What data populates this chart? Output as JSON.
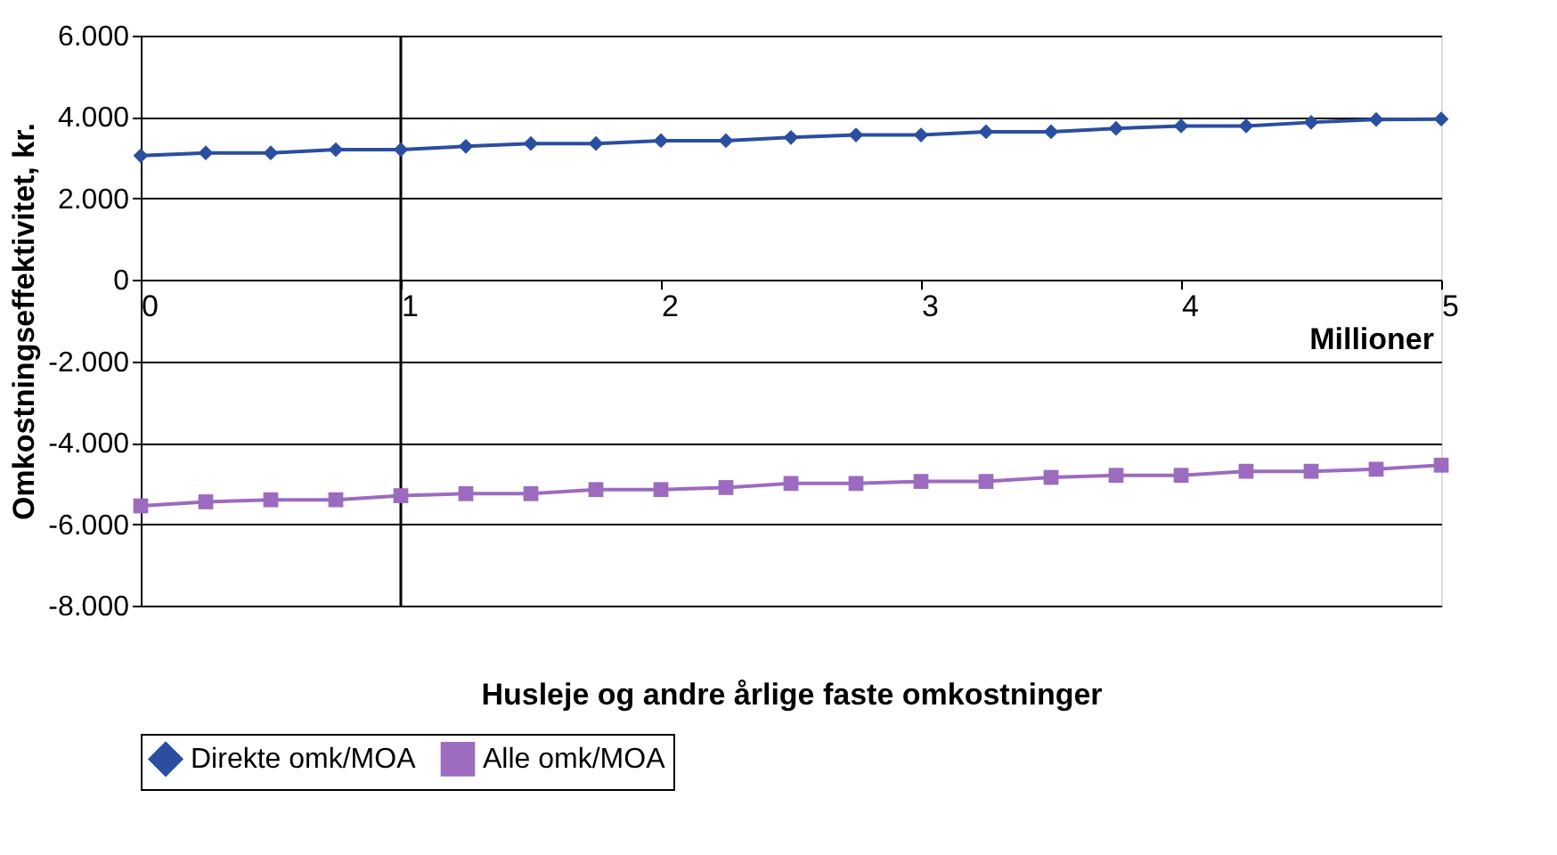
{
  "chart_data": {
    "type": "line",
    "xlabel": "Husleje og andre årlige faste omkostninger",
    "ylabel": "Omkostningseffektivitet, kr.",
    "x": [
      0,
      0.25,
      0.5,
      0.75,
      1,
      1.25,
      1.5,
      1.75,
      2,
      2.25,
      2.5,
      2.75,
      3,
      3.25,
      3.5,
      3.75,
      4,
      4.25,
      4.5,
      4.75,
      5
    ],
    "series": [
      {
        "name": "Direkte omk/MOA",
        "color": "#2a4ea0",
        "marker": "diamond",
        "values": [
          3050,
          3120,
          3120,
          3200,
          3200,
          3280,
          3350,
          3350,
          3420,
          3420,
          3500,
          3560,
          3560,
          3640,
          3640,
          3720,
          3780,
          3780,
          3870,
          3940,
          3950
        ]
      },
      {
        "name": "Alle omk/MOA",
        "color": "#9c6bbf",
        "marker": "square",
        "values": [
          -5550,
          -5450,
          -5400,
          -5400,
          -5300,
          -5250,
          -5250,
          -5150,
          -5150,
          -5100,
          -5000,
          -5000,
          -4950,
          -4950,
          -4850,
          -4800,
          -4800,
          -4700,
          -4700,
          -4650,
          -4550
        ]
      }
    ],
    "xlim": [
      0,
      5
    ],
    "xticks": [
      0,
      1,
      2,
      3,
      4,
      5
    ],
    "ylim": [
      -8000,
      6000
    ],
    "yticks": [
      {
        "value": -8000,
        "label": "-8.000"
      },
      {
        "value": -6000,
        "label": "-6.000"
      },
      {
        "value": -4000,
        "label": "-4.000"
      },
      {
        "value": -2000,
        "label": "-2.000"
      },
      0,
      {
        "value": 2000,
        "label": "2.000"
      },
      {
        "value": 4000,
        "label": "4.000"
      },
      {
        "value": 6000,
        "label": "6.000"
      }
    ],
    "ref_lines": [
      {
        "axis": "x",
        "value": 1,
        "color": "#000000"
      }
    ],
    "annotations": [
      "Millioner"
    ],
    "grid": "y",
    "legend": "bottom",
    "line_style": "solid"
  }
}
